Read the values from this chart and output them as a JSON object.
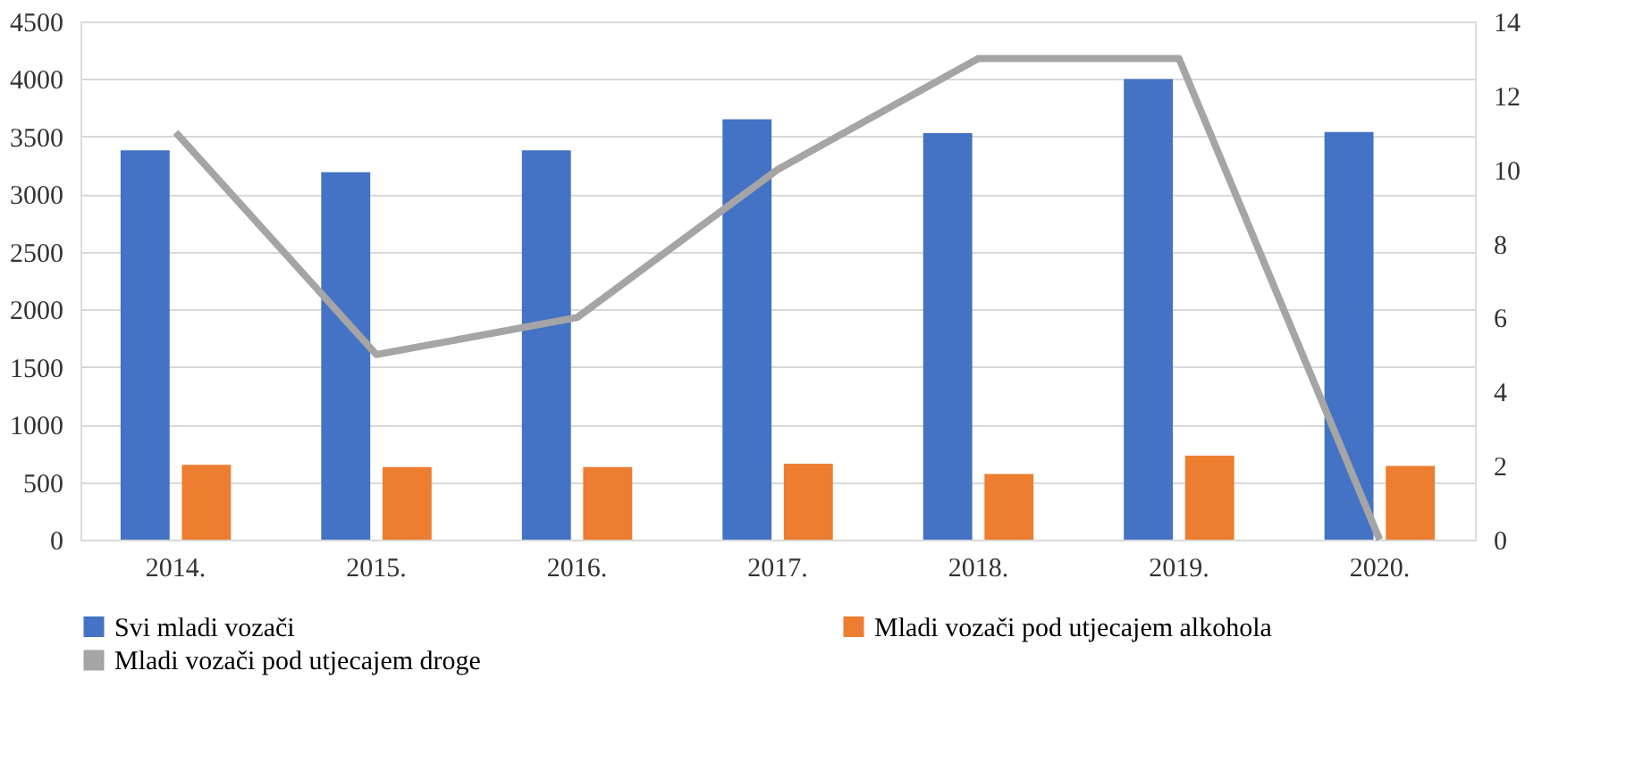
{
  "chart_data": {
    "type": "bar",
    "categories": [
      "2014.",
      "2015.",
      "2016.",
      "2017.",
      "2018.",
      "2019.",
      "2020."
    ],
    "series": [
      {
        "name": "Svi mladi vozači",
        "color": "#4472c4",
        "values": [
          3380,
          3190,
          3380,
          3650,
          3530,
          4000,
          3540
        ]
      },
      {
        "name": "Mladi vozači pod utjecajem alkohola",
        "color": "#ed7d31",
        "values": [
          650,
          630,
          630,
          660,
          570,
          730,
          640
        ]
      },
      {
        "name": "Mladi vozači pod utjecajem droge",
        "color": "#a5a5a5",
        "type": "line",
        "axis": "y2",
        "values": [
          11,
          5,
          6,
          10,
          13,
          13,
          0
        ]
      }
    ],
    "ylim": [
      0,
      4500
    ],
    "yticks": [
      0,
      500,
      1000,
      1500,
      2000,
      2500,
      3000,
      3500,
      4000,
      4500
    ],
    "y2lim": [
      0,
      14
    ],
    "y2ticks": [
      0,
      2,
      4,
      6,
      8,
      10,
      12,
      14
    ],
    "grid": "y",
    "legend": "bottom",
    "marker": "none"
  }
}
